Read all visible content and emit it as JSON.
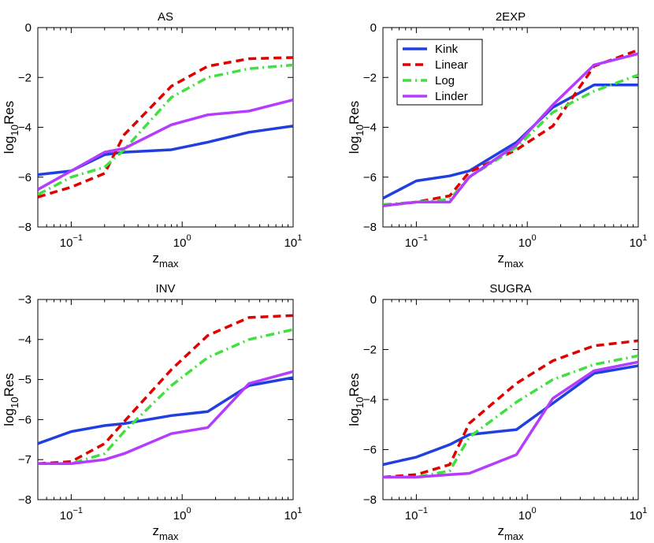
{
  "chart_data": [
    {
      "type": "line",
      "title": "AS",
      "xlabel": "z",
      "xlabel_sub": "max",
      "ylabel": "log",
      "ylabel_sub": "10",
      "ylabel_suffix": "Res",
      "xscale": "log",
      "xlim": [
        0.05,
        10
      ],
      "ylim": [
        -8,
        0
      ],
      "xticks": [
        0.1,
        1,
        10
      ],
      "xtick_labels": [
        {
          "base": "10",
          "exp": "−1"
        },
        {
          "base": "10",
          "exp": "0"
        },
        {
          "base": "10",
          "exp": "1"
        }
      ],
      "yticks": [
        -8,
        -6,
        -4,
        -2,
        0
      ],
      "ytick_labels": [
        "−8",
        "−6",
        "−4",
        "−2",
        "0"
      ],
      "legend": false,
      "series": [
        {
          "name": "Kink",
          "color": "#1f3fe0",
          "dash": "solid",
          "x": [
            0.05,
            0.1,
            0.2,
            0.3,
            0.8,
            1.7,
            4,
            10
          ],
          "y": [
            -5.9,
            -5.75,
            -5.1,
            -5.0,
            -4.9,
            -4.6,
            -4.2,
            -3.95
          ]
        },
        {
          "name": "Linear",
          "color": "#e00000",
          "dash": "dashed",
          "x": [
            0.05,
            0.1,
            0.2,
            0.3,
            0.8,
            1.7,
            4,
            10
          ],
          "y": [
            -6.8,
            -6.4,
            -5.85,
            -4.3,
            -2.35,
            -1.55,
            -1.25,
            -1.2
          ]
        },
        {
          "name": "Log",
          "color": "#3fe03f",
          "dash": "dashdot",
          "x": [
            0.05,
            0.1,
            0.2,
            0.3,
            0.8,
            1.7,
            4,
            10
          ],
          "y": [
            -6.7,
            -6.0,
            -5.6,
            -4.9,
            -2.8,
            -2.0,
            -1.65,
            -1.5
          ]
        },
        {
          "name": "Linder",
          "color": "#b43cff",
          "dash": "solid",
          "x": [
            0.05,
            0.1,
            0.2,
            0.3,
            0.8,
            1.7,
            4,
            10
          ],
          "y": [
            -6.5,
            -5.75,
            -5.0,
            -4.85,
            -3.9,
            -3.5,
            -3.35,
            -2.9
          ]
        }
      ]
    },
    {
      "type": "line",
      "title": "2EXP",
      "xlabel": "z",
      "xlabel_sub": "max",
      "ylabel": "log",
      "ylabel_sub": "10",
      "ylabel_suffix": "Res",
      "xscale": "log",
      "xlim": [
        0.05,
        10
      ],
      "ylim": [
        -8,
        0
      ],
      "xticks": [
        0.1,
        1,
        10
      ],
      "xtick_labels": [
        {
          "base": "10",
          "exp": "−1"
        },
        {
          "base": "10",
          "exp": "0"
        },
        {
          "base": "10",
          "exp": "1"
        }
      ],
      "yticks": [
        -8,
        -6,
        -4,
        -2,
        0
      ],
      "ytick_labels": [
        "−8",
        "−6",
        "−4",
        "−2",
        "0"
      ],
      "legend": true,
      "legend_position": "top-left",
      "series": [
        {
          "name": "Kink",
          "color": "#1f3fe0",
          "dash": "solid",
          "x": [
            0.05,
            0.1,
            0.2,
            0.3,
            0.8,
            1.7,
            4,
            10
          ],
          "y": [
            -6.85,
            -6.15,
            -5.95,
            -5.75,
            -4.6,
            -3.2,
            -2.3,
            -2.3
          ]
        },
        {
          "name": "Linear",
          "color": "#e00000",
          "dash": "dashed",
          "x": [
            0.05,
            0.1,
            0.2,
            0.3,
            0.8,
            1.7,
            4,
            10
          ],
          "y": [
            -7.15,
            -7.0,
            -6.75,
            -5.8,
            -4.9,
            -3.95,
            -1.55,
            -0.9
          ]
        },
        {
          "name": "Log",
          "color": "#3fe03f",
          "dash": "dashdot",
          "x": [
            0.05,
            0.1,
            0.2,
            0.3,
            0.8,
            1.7,
            4,
            10
          ],
          "y": [
            -7.1,
            -7.0,
            -6.9,
            -6.0,
            -4.8,
            -3.4,
            -2.55,
            -1.9
          ]
        },
        {
          "name": "Linder",
          "color": "#b43cff",
          "dash": "solid",
          "x": [
            0.05,
            0.1,
            0.2,
            0.3,
            0.8,
            1.7,
            4,
            10
          ],
          "y": [
            -7.15,
            -7.0,
            -7.0,
            -6.0,
            -4.7,
            -3.1,
            -1.5,
            -1.05
          ]
        }
      ]
    },
    {
      "type": "line",
      "title": "INV",
      "xlabel": "z",
      "xlabel_sub": "max",
      "ylabel": "log",
      "ylabel_sub": "10",
      "ylabel_suffix": "Res",
      "xscale": "log",
      "xlim": [
        0.05,
        10
      ],
      "ylim": [
        -8,
        -3
      ],
      "xticks": [
        0.1,
        1,
        10
      ],
      "xtick_labels": [
        {
          "base": "10",
          "exp": "−1"
        },
        {
          "base": "10",
          "exp": "0"
        },
        {
          "base": "10",
          "exp": "1"
        }
      ],
      "yticks": [
        -8,
        -7,
        -6,
        -5,
        -4,
        -3
      ],
      "ytick_labels": [
        "−8",
        "−7",
        "−6",
        "−5",
        "−4",
        "−3"
      ],
      "legend": false,
      "series": [
        {
          "name": "Kink",
          "color": "#1f3fe0",
          "dash": "solid",
          "x": [
            0.05,
            0.1,
            0.2,
            0.3,
            0.8,
            1.7,
            4,
            10
          ],
          "y": [
            -6.6,
            -6.3,
            -6.15,
            -6.1,
            -5.9,
            -5.8,
            -5.15,
            -4.95
          ]
        },
        {
          "name": "Linear",
          "color": "#e00000",
          "dash": "dashed",
          "x": [
            0.05,
            0.1,
            0.2,
            0.3,
            0.8,
            1.7,
            4,
            10
          ],
          "y": [
            -7.1,
            -7.05,
            -6.6,
            -6.05,
            -4.75,
            -3.9,
            -3.45,
            -3.4
          ]
        },
        {
          "name": "Log",
          "color": "#3fe03f",
          "dash": "dashdot",
          "x": [
            0.05,
            0.1,
            0.2,
            0.3,
            0.8,
            1.7,
            4,
            10
          ],
          "y": [
            -7.1,
            -7.1,
            -6.85,
            -6.3,
            -5.15,
            -4.45,
            -4.0,
            -3.75
          ]
        },
        {
          "name": "Linder",
          "color": "#b43cff",
          "dash": "solid",
          "x": [
            0.05,
            0.1,
            0.2,
            0.3,
            0.8,
            1.7,
            4,
            10
          ],
          "y": [
            -7.1,
            -7.1,
            -7.0,
            -6.85,
            -6.35,
            -6.2,
            -5.1,
            -4.8
          ]
        }
      ]
    },
    {
      "type": "line",
      "title": "SUGRA",
      "xlabel": "z",
      "xlabel_sub": "max",
      "ylabel": "log",
      "ylabel_sub": "10",
      "ylabel_suffix": "Res",
      "xscale": "log",
      "xlim": [
        0.05,
        10
      ],
      "ylim": [
        -8,
        0
      ],
      "xticks": [
        0.1,
        1,
        10
      ],
      "xtick_labels": [
        {
          "base": "10",
          "exp": "−1"
        },
        {
          "base": "10",
          "exp": "0"
        },
        {
          "base": "10",
          "exp": "1"
        }
      ],
      "yticks": [
        -8,
        -6,
        -4,
        -2,
        0
      ],
      "ytick_labels": [
        "−8",
        "−6",
        "−4",
        "−2",
        "0"
      ],
      "legend": false,
      "series": [
        {
          "name": "Kink",
          "color": "#1f3fe0",
          "dash": "solid",
          "x": [
            0.05,
            0.1,
            0.2,
            0.3,
            0.8,
            1.7,
            4,
            10
          ],
          "y": [
            -6.6,
            -6.3,
            -5.8,
            -5.4,
            -5.2,
            -4.15,
            -2.95,
            -2.65
          ]
        },
        {
          "name": "Linear",
          "color": "#e00000",
          "dash": "dashed",
          "x": [
            0.05,
            0.1,
            0.2,
            0.3,
            0.8,
            1.7,
            4,
            10
          ],
          "y": [
            -7.1,
            -7.0,
            -6.6,
            -4.95,
            -3.35,
            -2.45,
            -1.85,
            -1.65
          ]
        },
        {
          "name": "Log",
          "color": "#3fe03f",
          "dash": "dashdot",
          "x": [
            0.05,
            0.1,
            0.2,
            0.3,
            0.8,
            1.7,
            4,
            10
          ],
          "y": [
            -7.1,
            -7.1,
            -6.85,
            -5.5,
            -4.1,
            -3.2,
            -2.6,
            -2.25
          ]
        },
        {
          "name": "Linder",
          "color": "#b43cff",
          "dash": "solid",
          "x": [
            0.05,
            0.1,
            0.2,
            0.3,
            0.8,
            1.7,
            4,
            10
          ],
          "y": [
            -7.1,
            -7.1,
            -7.0,
            -6.95,
            -6.2,
            -3.95,
            -2.85,
            -2.5
          ]
        }
      ]
    }
  ]
}
